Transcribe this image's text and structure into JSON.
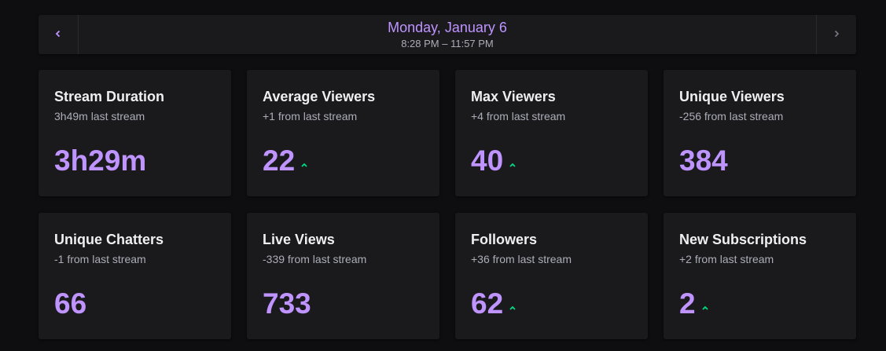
{
  "nav": {
    "date": "Monday, January 6",
    "time_range": "8:28 PM – 11:57 PM",
    "prev_icon": "chevron-left-icon",
    "next_icon": "chevron-right-icon"
  },
  "colors": {
    "accent": "#bf94ff",
    "trend_up": "#00db84",
    "card_bg": "#1a1a1d",
    "page_bg": "#0e0e10"
  },
  "stats": [
    {
      "title": "Stream Duration",
      "sub": "3h49m last stream",
      "value": "3h29m",
      "trend": "none"
    },
    {
      "title": "Average Viewers",
      "sub": "+1 from last stream",
      "value": "22",
      "trend": "up"
    },
    {
      "title": "Max Viewers",
      "sub": "+4 from last stream",
      "value": "40",
      "trend": "up"
    },
    {
      "title": "Unique Viewers",
      "sub": "-256 from last stream",
      "value": "384",
      "trend": "none"
    },
    {
      "title": "Unique Chatters",
      "sub": "-1 from last stream",
      "value": "66",
      "trend": "none"
    },
    {
      "title": "Live Views",
      "sub": "-339 from last stream",
      "value": "733",
      "trend": "none"
    },
    {
      "title": "Followers",
      "sub": "+36 from last stream",
      "value": "62",
      "trend": "up"
    },
    {
      "title": "New Subscriptions",
      "sub": "+2 from last stream",
      "value": "2",
      "trend": "up"
    }
  ]
}
